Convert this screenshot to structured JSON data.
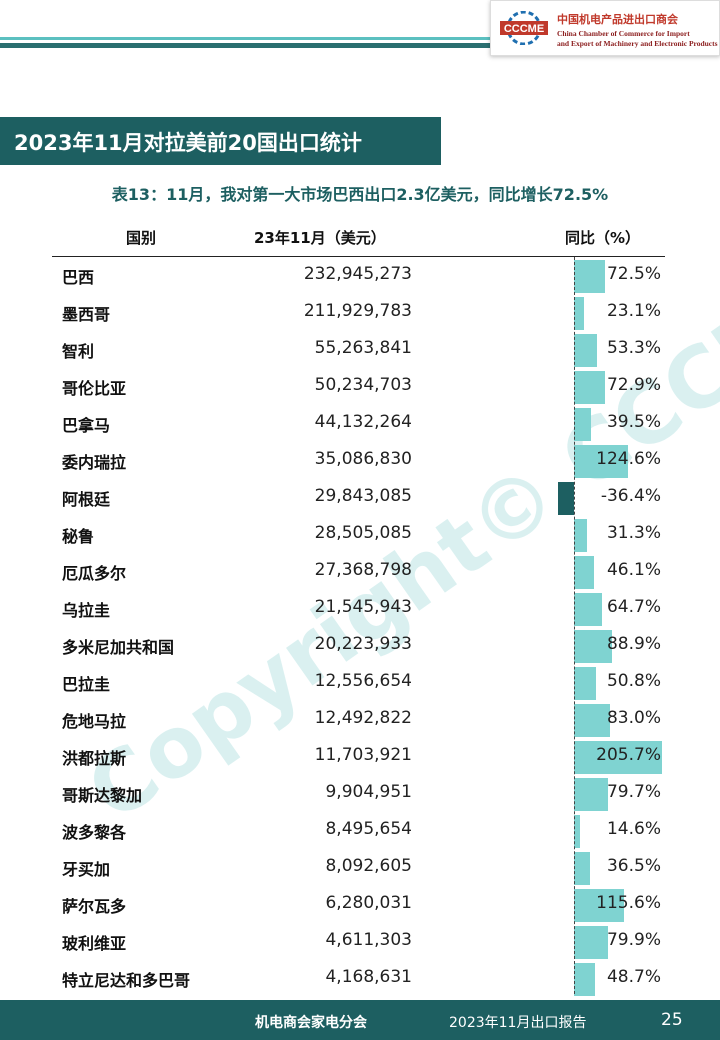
{
  "header": {
    "logo_text": "CCCME",
    "org_cn": "中国机电产品进出口商会",
    "org_en_line1": "China Chamber of Commerce for Import",
    "org_en_line2": "and Export of Machinery and Electronic Products"
  },
  "title": "2023年11月对拉美前20国出口统计",
  "subtitle": "表13：11月，我对第一大市场巴西出口2.3亿美元，同比增长72.5%",
  "columns": {
    "country": "国别",
    "value": "23年11月（美元）",
    "yoy": "同比（%）"
  },
  "watermark": "Copyright© CCCME",
  "colors": {
    "teal_dark": "#1d5f61",
    "teal_light": "#7fd3d1",
    "accent": "#5bc0c0"
  },
  "rows": [
    {
      "country": "巴西",
      "value": "232,945,273",
      "yoy": "72.5%",
      "yoy_num": 72.5
    },
    {
      "country": "墨西哥",
      "value": "211,929,783",
      "yoy": "23.1%",
      "yoy_num": 23.1
    },
    {
      "country": "智利",
      "value": "55,263,841",
      "yoy": "53.3%",
      "yoy_num": 53.3
    },
    {
      "country": "哥伦比亚",
      "value": "50,234,703",
      "yoy": "72.9%",
      "yoy_num": 72.9
    },
    {
      "country": "巴拿马",
      "value": "44,132,264",
      "yoy": "39.5%",
      "yoy_num": 39.5
    },
    {
      "country": "委内瑞拉",
      "value": "35,086,830",
      "yoy": "124.6%",
      "yoy_num": 124.6
    },
    {
      "country": "阿根廷",
      "value": "29,843,085",
      "yoy": "-36.4%",
      "yoy_num": -36.4
    },
    {
      "country": "秘鲁",
      "value": "28,505,085",
      "yoy": "31.3%",
      "yoy_num": 31.3
    },
    {
      "country": "厄瓜多尔",
      "value": "27,368,798",
      "yoy": "46.1%",
      "yoy_num": 46.1
    },
    {
      "country": "乌拉圭",
      "value": "21,545,943",
      "yoy": "64.7%",
      "yoy_num": 64.7
    },
    {
      "country": "多米尼加共和国",
      "value": "20,223,933",
      "yoy": "88.9%",
      "yoy_num": 88.9
    },
    {
      "country": "巴拉圭",
      "value": "12,556,654",
      "yoy": "50.8%",
      "yoy_num": 50.8
    },
    {
      "country": "危地马拉",
      "value": "12,492,822",
      "yoy": "83.0%",
      "yoy_num": 83.0
    },
    {
      "country": "洪都拉斯",
      "value": "11,703,921",
      "yoy": "205.7%",
      "yoy_num": 205.7
    },
    {
      "country": "哥斯达黎加",
      "value": "9,904,951",
      "yoy": "79.7%",
      "yoy_num": 79.7
    },
    {
      "country": "波多黎各",
      "value": "8,495,654",
      "yoy": "14.6%",
      "yoy_num": 14.6
    },
    {
      "country": "牙买加",
      "value": "8,092,605",
      "yoy": "36.5%",
      "yoy_num": 36.5
    },
    {
      "country": "萨尔瓦多",
      "value": "6,280,031",
      "yoy": "115.6%",
      "yoy_num": 115.6
    },
    {
      "country": "玻利维亚",
      "value": "4,611,303",
      "yoy": "79.9%",
      "yoy_num": 79.9
    },
    {
      "country": "特立尼达和多巴哥",
      "value": "4,168,631",
      "yoy": "48.7%",
      "yoy_num": 48.7
    }
  ],
  "footer": {
    "org": "机电商会家电分会",
    "report": "2023年11月出口报告",
    "page": "25"
  }
}
